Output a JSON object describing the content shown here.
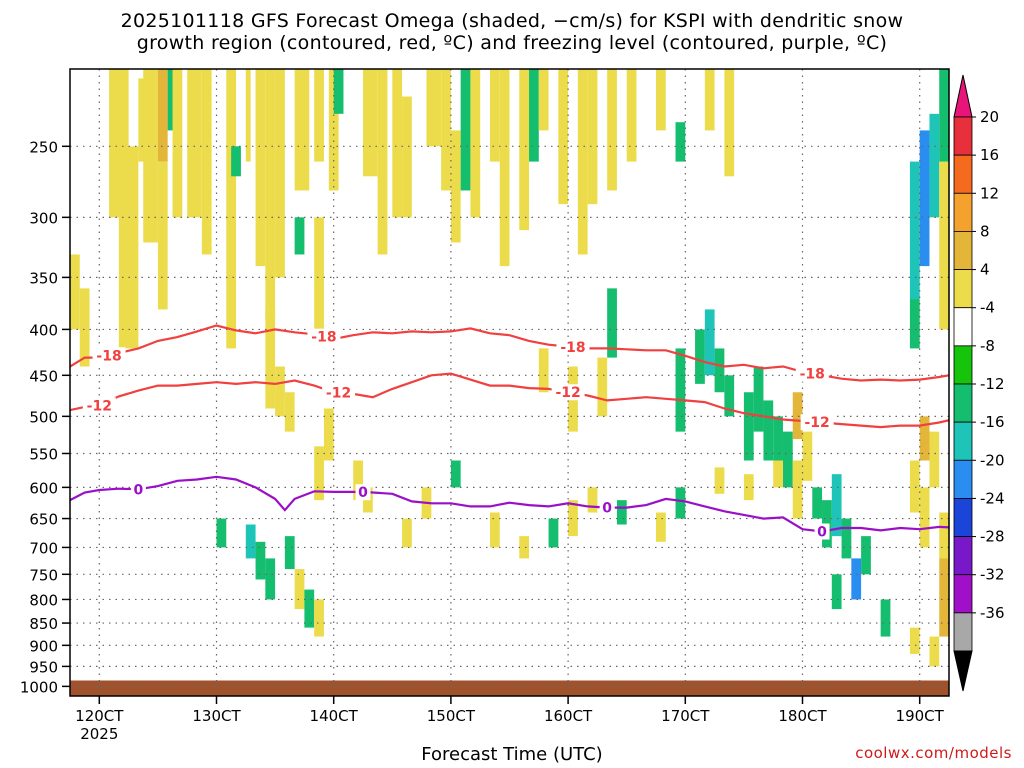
{
  "chart_data": {
    "type": "heatmap",
    "title_line1": "2025101118 GFS Forecast Omega (shaded, −cm/s) for KSPI with dendritic snow",
    "title_line2": "growth region (contoured, red, ºC) and freezing level (contoured, purple, ºC)",
    "xlabel": "Forecast Time (UTC)",
    "credit": "coolwx.com/models",
    "x_ticks": [
      {
        "label": "120CT",
        "hour": 0
      },
      {
        "label": "130CT",
        "hour": 24
      },
      {
        "label": "140CT",
        "hour": 48
      },
      {
        "label": "150CT",
        "hour": 72
      },
      {
        "label": "160CT",
        "hour": 96
      },
      {
        "label": "170CT",
        "hour": 120
      },
      {
        "label": "180CT",
        "hour": 144
      },
      {
        "label": "190CT",
        "hour": 168
      }
    ],
    "x_year_label": "2025",
    "xlim_hours": [
      -6,
      174
    ],
    "y_ticks": [
      "250",
      "300",
      "350",
      "400",
      "450",
      "500",
      "550",
      "600",
      "650",
      "700",
      "750",
      "800",
      "850",
      "900",
      "950",
      "1000"
    ],
    "ylim_hpa": [
      1025,
      205
    ],
    "colorbar": {
      "labels": [
        "20",
        "16",
        "12",
        "8",
        "4",
        "-4",
        "-8",
        "-12",
        "-16",
        "-20",
        "-24",
        "-28",
        "-32",
        "-36"
      ],
      "colors": [
        "#e8303c",
        "#f46a1e",
        "#f5a12e",
        "#e3b63a",
        "#ecdc4c",
        "#ffffff",
        "#16c40c",
        "#14be6e",
        "#1fc4b8",
        "#2a8ef0",
        "#1b44d8",
        "#7818c8",
        "#a010c8",
        "#a8a8a8"
      ],
      "top_arrow_color": "#e8147a",
      "bottom_arrow_color": "#000000"
    },
    "contours": [
      {
        "name": "-18",
        "label": "-18",
        "color": "#f04040",
        "points": [
          [
            -6,
            440
          ],
          [
            -3,
            430
          ],
          [
            0,
            430
          ],
          [
            4,
            425
          ],
          [
            8,
            420
          ],
          [
            12,
            412
          ],
          [
            16,
            408
          ],
          [
            20,
            402
          ],
          [
            24,
            396
          ],
          [
            28,
            401
          ],
          [
            32,
            404
          ],
          [
            36,
            400
          ],
          [
            40,
            403
          ],
          [
            44,
            405
          ],
          [
            48,
            410
          ],
          [
            52,
            406
          ],
          [
            56,
            403
          ],
          [
            60,
            404
          ],
          [
            64,
            402
          ],
          [
            68,
            403
          ],
          [
            72,
            402
          ],
          [
            76,
            399
          ],
          [
            80,
            404
          ],
          [
            84,
            406
          ],
          [
            88,
            412
          ],
          [
            92,
            416
          ],
          [
            96,
            418
          ],
          [
            100,
            420
          ],
          [
            104,
            420
          ],
          [
            108,
            421
          ],
          [
            112,
            422
          ],
          [
            116,
            422
          ],
          [
            120,
            428
          ],
          [
            124,
            435
          ],
          [
            128,
            440
          ],
          [
            132,
            438
          ],
          [
            136,
            442
          ],
          [
            140,
            440
          ],
          [
            144,
            446
          ],
          [
            148,
            450
          ],
          [
            152,
            454
          ],
          [
            156,
            456
          ],
          [
            160,
            455
          ],
          [
            164,
            456
          ],
          [
            168,
            455
          ],
          [
            172,
            452
          ],
          [
            174,
            450
          ]
        ]
      },
      {
        "name": "-12",
        "label": "-12",
        "color": "#f04040",
        "points": [
          [
            -6,
            492
          ],
          [
            -3,
            488
          ],
          [
            0,
            486
          ],
          [
            4,
            475
          ],
          [
            8,
            468
          ],
          [
            12,
            462
          ],
          [
            16,
            462
          ],
          [
            20,
            460
          ],
          [
            24,
            458
          ],
          [
            28,
            460
          ],
          [
            32,
            458
          ],
          [
            36,
            460
          ],
          [
            40,
            456
          ],
          [
            44,
            462
          ],
          [
            48,
            470
          ],
          [
            52,
            472
          ],
          [
            56,
            476
          ],
          [
            60,
            466
          ],
          [
            64,
            458
          ],
          [
            68,
            450
          ],
          [
            72,
            448
          ],
          [
            76,
            455
          ],
          [
            80,
            462
          ],
          [
            84,
            462
          ],
          [
            88,
            465
          ],
          [
            92,
            466
          ],
          [
            96,
            470
          ],
          [
            100,
            474
          ],
          [
            104,
            480
          ],
          [
            108,
            478
          ],
          [
            112,
            476
          ],
          [
            116,
            478
          ],
          [
            120,
            480
          ],
          [
            124,
            482
          ],
          [
            128,
            490
          ],
          [
            132,
            496
          ],
          [
            136,
            500
          ],
          [
            140,
            504
          ],
          [
            144,
            506
          ],
          [
            148,
            508
          ],
          [
            152,
            510
          ],
          [
            156,
            512
          ],
          [
            160,
            514
          ],
          [
            164,
            512
          ],
          [
            168,
            512
          ],
          [
            172,
            508
          ],
          [
            174,
            505
          ]
        ]
      },
      {
        "name": "0",
        "label": "0",
        "color": "#9a10c8",
        "points": [
          [
            -6,
            620
          ],
          [
            -3,
            608
          ],
          [
            0,
            604
          ],
          [
            4,
            602
          ],
          [
            8,
            603
          ],
          [
            12,
            598
          ],
          [
            16,
            590
          ],
          [
            20,
            588
          ],
          [
            24,
            584
          ],
          [
            28,
            588
          ],
          [
            32,
            600
          ],
          [
            36,
            618
          ],
          [
            38,
            636
          ],
          [
            40,
            618
          ],
          [
            44,
            606
          ],
          [
            48,
            607
          ],
          [
            52,
            607
          ],
          [
            56,
            608
          ],
          [
            60,
            610
          ],
          [
            64,
            622
          ],
          [
            68,
            625
          ],
          [
            72,
            625
          ],
          [
            76,
            630
          ],
          [
            80,
            630
          ],
          [
            84,
            624
          ],
          [
            88,
            628
          ],
          [
            92,
            630
          ],
          [
            96,
            625
          ],
          [
            100,
            630
          ],
          [
            104,
            632
          ],
          [
            108,
            632
          ],
          [
            112,
            628
          ],
          [
            116,
            618
          ],
          [
            120,
            622
          ],
          [
            124,
            630
          ],
          [
            128,
            638
          ],
          [
            132,
            644
          ],
          [
            136,
            650
          ],
          [
            140,
            648
          ],
          [
            144,
            668
          ],
          [
            148,
            672
          ],
          [
            152,
            666
          ],
          [
            156,
            666
          ],
          [
            160,
            670
          ],
          [
            164,
            666
          ],
          [
            168,
            668
          ],
          [
            172,
            664
          ],
          [
            174,
            665
          ]
        ]
      }
    ],
    "contour_label_positions": [
      {
        "contour": "-18",
        "hours": [
          2,
          46,
          97,
          146
        ]
      },
      {
        "contour": "-12",
        "hours": [
          0,
          49,
          96,
          147
        ]
      },
      {
        "contour": "0",
        "hours": [
          8,
          54,
          104,
          148
        ]
      }
    ],
    "omega_cells": [
      [
        -6,
        330,
        -4,
        400,
        5
      ],
      [
        -4,
        360,
        -2,
        440,
        5
      ],
      [
        2,
        170,
        6,
        300,
        5
      ],
      [
        4,
        250,
        8,
        420,
        5
      ],
      [
        8,
        210,
        10,
        260,
        5
      ],
      [
        9,
        205,
        12,
        320,
        5
      ],
      [
        12,
        205,
        14,
        260,
        9
      ],
      [
        12,
        260,
        14,
        380,
        5
      ],
      [
        14,
        205,
        16,
        240,
        -8
      ],
      [
        15,
        205,
        17,
        300,
        5
      ],
      [
        18,
        205,
        21,
        300,
        5
      ],
      [
        21,
        205,
        23,
        330,
        5
      ],
      [
        26,
        205,
        28,
        420,
        5
      ],
      [
        27,
        250,
        29,
        270,
        -8
      ],
      [
        30,
        205,
        31,
        260,
        5
      ],
      [
        32,
        205,
        34,
        340,
        5
      ],
      [
        34,
        205,
        36,
        390,
        5
      ],
      [
        36,
        205,
        38,
        350,
        5
      ],
      [
        40,
        205,
        43,
        280,
        5
      ],
      [
        40,
        300,
        42,
        330,
        -8
      ],
      [
        44,
        205,
        46,
        260,
        5
      ],
      [
        44,
        300,
        46,
        400,
        5
      ],
      [
        47,
        205,
        49,
        280,
        5
      ],
      [
        48,
        205,
        50,
        230,
        -8
      ],
      [
        54,
        205,
        57,
        270,
        5
      ],
      [
        57,
        205,
        59,
        330,
        5
      ],
      [
        60,
        205,
        62,
        300,
        5
      ],
      [
        62,
        220,
        64,
        300,
        5
      ],
      [
        67,
        205,
        70,
        250,
        5
      ],
      [
        70,
        205,
        72,
        280,
        5
      ],
      [
        72,
        240,
        74,
        320,
        5
      ],
      [
        74,
        205,
        76,
        280,
        -8
      ],
      [
        76,
        205,
        78,
        300,
        5
      ],
      [
        80,
        205,
        82,
        260,
        5
      ],
      [
        82,
        205,
        84,
        340,
        5
      ],
      [
        86,
        205,
        88,
        310,
        5
      ],
      [
        88,
        205,
        90,
        260,
        -8
      ],
      [
        90,
        205,
        92,
        240,
        5
      ],
      [
        94,
        205,
        96,
        290,
        5
      ],
      [
        98,
        205,
        100,
        330,
        5
      ],
      [
        100,
        205,
        102,
        290,
        5
      ],
      [
        104,
        205,
        106,
        280,
        5
      ],
      [
        108,
        205,
        110,
        260,
        5
      ],
      [
        114,
        205,
        116,
        240,
        5
      ],
      [
        118,
        235,
        120,
        260,
        -8
      ],
      [
        124,
        205,
        126,
        240,
        5
      ],
      [
        128,
        205,
        130,
        270,
        5
      ],
      [
        34,
        380,
        36,
        490,
        5
      ],
      [
        36,
        440,
        38,
        500,
        5
      ],
      [
        38,
        470,
        40,
        520,
        5
      ],
      [
        44,
        540,
        46,
        620,
        5
      ],
      [
        46,
        490,
        48,
        560,
        5
      ],
      [
        90,
        420,
        92,
        470,
        5
      ],
      [
        96,
        440,
        98,
        520,
        5
      ],
      [
        102,
        430,
        104,
        500,
        5
      ],
      [
        104,
        360,
        106,
        430,
        -8
      ],
      [
        118,
        420,
        120,
        520,
        -8
      ],
      [
        122,
        400,
        124,
        460,
        -8
      ],
      [
        124,
        380,
        126,
        450,
        -12
      ],
      [
        126,
        420,
        128,
        470,
        -8
      ],
      [
        128,
        450,
        130,
        500,
        -8
      ],
      [
        132,
        470,
        134,
        560,
        -8
      ],
      [
        134,
        440,
        136,
        520,
        -8
      ],
      [
        136,
        480,
        138,
        560,
        -8
      ],
      [
        138,
        500,
        140,
        560,
        -8
      ],
      [
        140,
        520,
        142,
        600,
        -8
      ],
      [
        142,
        560,
        144,
        650,
        5
      ],
      [
        142,
        470,
        144,
        530,
        9
      ],
      [
        144,
        520,
        146,
        590,
        5
      ],
      [
        146,
        600,
        148,
        650,
        -8
      ],
      [
        148,
        620,
        150,
        700,
        -8
      ],
      [
        150,
        580,
        152,
        680,
        -12
      ],
      [
        152,
        650,
        154,
        720,
        -8
      ],
      [
        150,
        750,
        152,
        820,
        -8
      ],
      [
        154,
        720,
        156,
        800,
        -16
      ],
      [
        156,
        680,
        158,
        750,
        -8
      ],
      [
        160,
        800,
        162,
        880,
        -8
      ],
      [
        166,
        260,
        168,
        370,
        -12
      ],
      [
        168,
        240,
        170,
        340,
        -16
      ],
      [
        170,
        230,
        172,
        300,
        -12
      ],
      [
        166,
        370,
        168,
        420,
        -8
      ],
      [
        172,
        260,
        174,
        400,
        5
      ],
      [
        168,
        500,
        170,
        560,
        9
      ],
      [
        170,
        520,
        172,
        600,
        5
      ],
      [
        166,
        560,
        168,
        640,
        5
      ],
      [
        168,
        600,
        170,
        700,
        5
      ],
      [
        172,
        640,
        174,
        720,
        5
      ],
      [
        172,
        720,
        174,
        880,
        9
      ],
      [
        166,
        860,
        168,
        920,
        5
      ],
      [
        170,
        880,
        172,
        950,
        5
      ],
      [
        172,
        200,
        174,
        260,
        -8
      ],
      [
        30,
        660,
        32,
        720,
        -12
      ],
      [
        32,
        690,
        34,
        760,
        -8
      ],
      [
        34,
        720,
        36,
        800,
        -8
      ],
      [
        38,
        680,
        40,
        740,
        -8
      ],
      [
        40,
        740,
        42,
        820,
        5
      ],
      [
        42,
        780,
        44,
        860,
        -8
      ],
      [
        44,
        800,
        46,
        880,
        5
      ],
      [
        24,
        650,
        26,
        700,
        -8
      ],
      [
        52,
        560,
        54,
        620,
        5
      ],
      [
        54,
        600,
        56,
        640,
        5
      ],
      [
        62,
        650,
        64,
        700,
        5
      ],
      [
        66,
        600,
        68,
        650,
        5
      ],
      [
        72,
        560,
        74,
        600,
        -8
      ],
      [
        80,
        640,
        82,
        700,
        5
      ],
      [
        86,
        680,
        88,
        720,
        5
      ],
      [
        92,
        650,
        94,
        700,
        -8
      ],
      [
        96,
        620,
        98,
        680,
        5
      ],
      [
        100,
        600,
        102,
        640,
        5
      ],
      [
        106,
        620,
        108,
        660,
        -8
      ],
      [
        114,
        640,
        116,
        690,
        5
      ],
      [
        118,
        600,
        120,
        650,
        -8
      ],
      [
        126,
        570,
        128,
        610,
        5
      ],
      [
        132,
        580,
        134,
        620,
        5
      ],
      [
        138,
        560,
        140,
        600,
        5
      ]
    ],
    "ground": {
      "from_hpa": 985,
      "to_hpa": 1025,
      "color": "#a0522d"
    }
  }
}
